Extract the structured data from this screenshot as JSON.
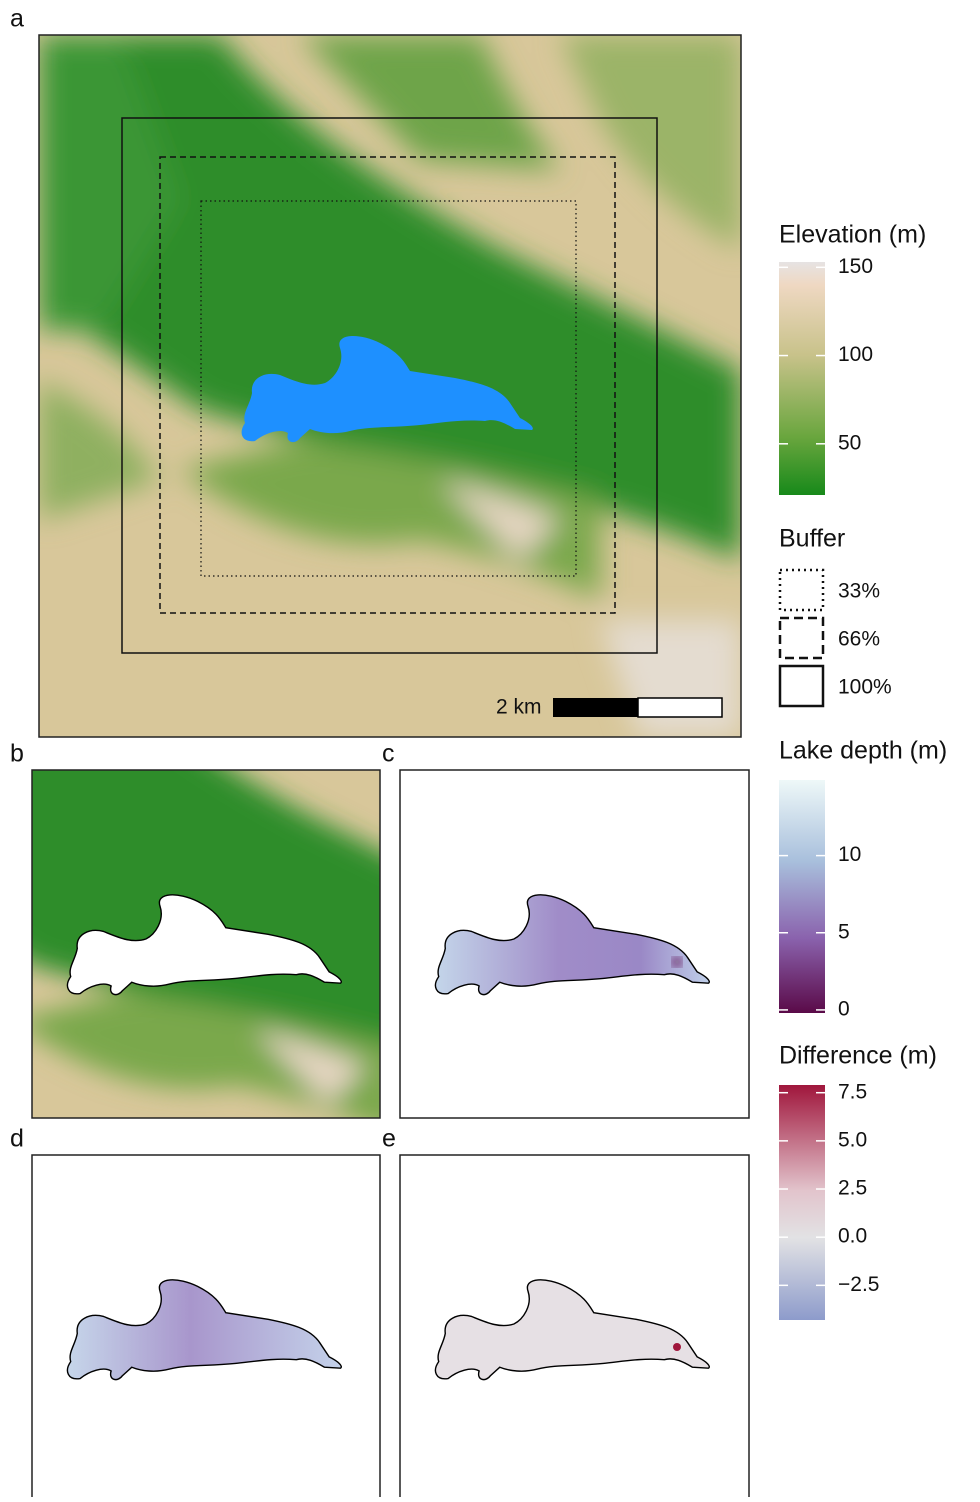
{
  "panel_labels": [
    "a",
    "b",
    "c",
    "d",
    "e"
  ],
  "scale_bar": {
    "label": "2 km"
  },
  "legends": {
    "elevation": {
      "title": "Elevation (m)",
      "lim": [
        21,
        153
      ],
      "ticks": [
        50,
        100,
        150
      ]
    },
    "buffer": {
      "title": "Buffer",
      "items": [
        "33%",
        "66%",
        "100%"
      ]
    },
    "lake_depth": {
      "title": "Lake depth (m)",
      "lim": [
        -0.2,
        14.9
      ],
      "ticks": [
        0,
        5,
        10
      ]
    },
    "difference": {
      "title": "Difference (m)",
      "lim": [
        -4.3,
        7.9
      ],
      "ticks": [
        7.5,
        {
          "value": 5,
          "label": "5.0"
        },
        2.5,
        {
          "value": 0,
          "label": "0.0"
        },
        {
          "value": -2.5,
          "label": "−2.5"
        }
      ]
    }
  }
}
